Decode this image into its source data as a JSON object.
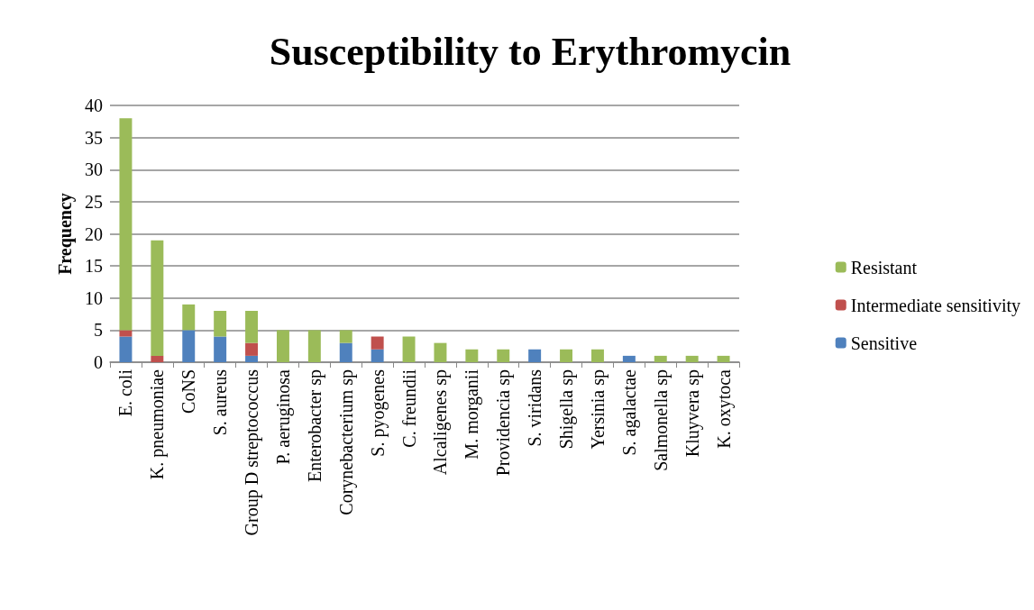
{
  "chart_data": {
    "type": "bar",
    "title": "Susceptibility to Erythromycin",
    "ylabel": "Frequency",
    "stacked": true,
    "categories": [
      "E. coli",
      "K. pneumoniae",
      "CoNS",
      "S. aureus",
      "Group D streptococcus",
      "P. aeruginosa",
      "Enterobacter sp",
      "Corynebacterium sp",
      "S. pyogenes",
      "C. freundii",
      "Alcaligenes sp",
      "M. morganii",
      "Providencia sp",
      "S. viridans",
      "Shigella sp",
      "Yersinia sp",
      "S. agalactae",
      "Salmonella sp",
      "Kluyvera sp",
      "K. oxytoca"
    ],
    "series": [
      {
        "name": "Sensitive",
        "color": "#4f81bd",
        "values": [
          4,
          0,
          5,
          4,
          1,
          0,
          0,
          3,
          2,
          0,
          0,
          0,
          0,
          2,
          0,
          0,
          1,
          0,
          0,
          0
        ]
      },
      {
        "name": "Intermediate sensitivity",
        "color": "#c0504d",
        "values": [
          1,
          1,
          0,
          0,
          2,
          0,
          0,
          0,
          2,
          0,
          0,
          0,
          0,
          0,
          0,
          0,
          0,
          0,
          0,
          0
        ]
      },
      {
        "name": "Resistant",
        "color": "#9bbb59",
        "values": [
          33,
          18,
          4,
          4,
          5,
          5,
          5,
          2,
          0,
          4,
          3,
          2,
          2,
          0,
          2,
          2,
          0,
          1,
          1,
          1
        ]
      }
    ],
    "ylim": [
      0,
      40
    ],
    "yticks": [
      0,
      5,
      10,
      15,
      20,
      25,
      30,
      35,
      40
    ],
    "grid": "y",
    "legend": "right"
  }
}
